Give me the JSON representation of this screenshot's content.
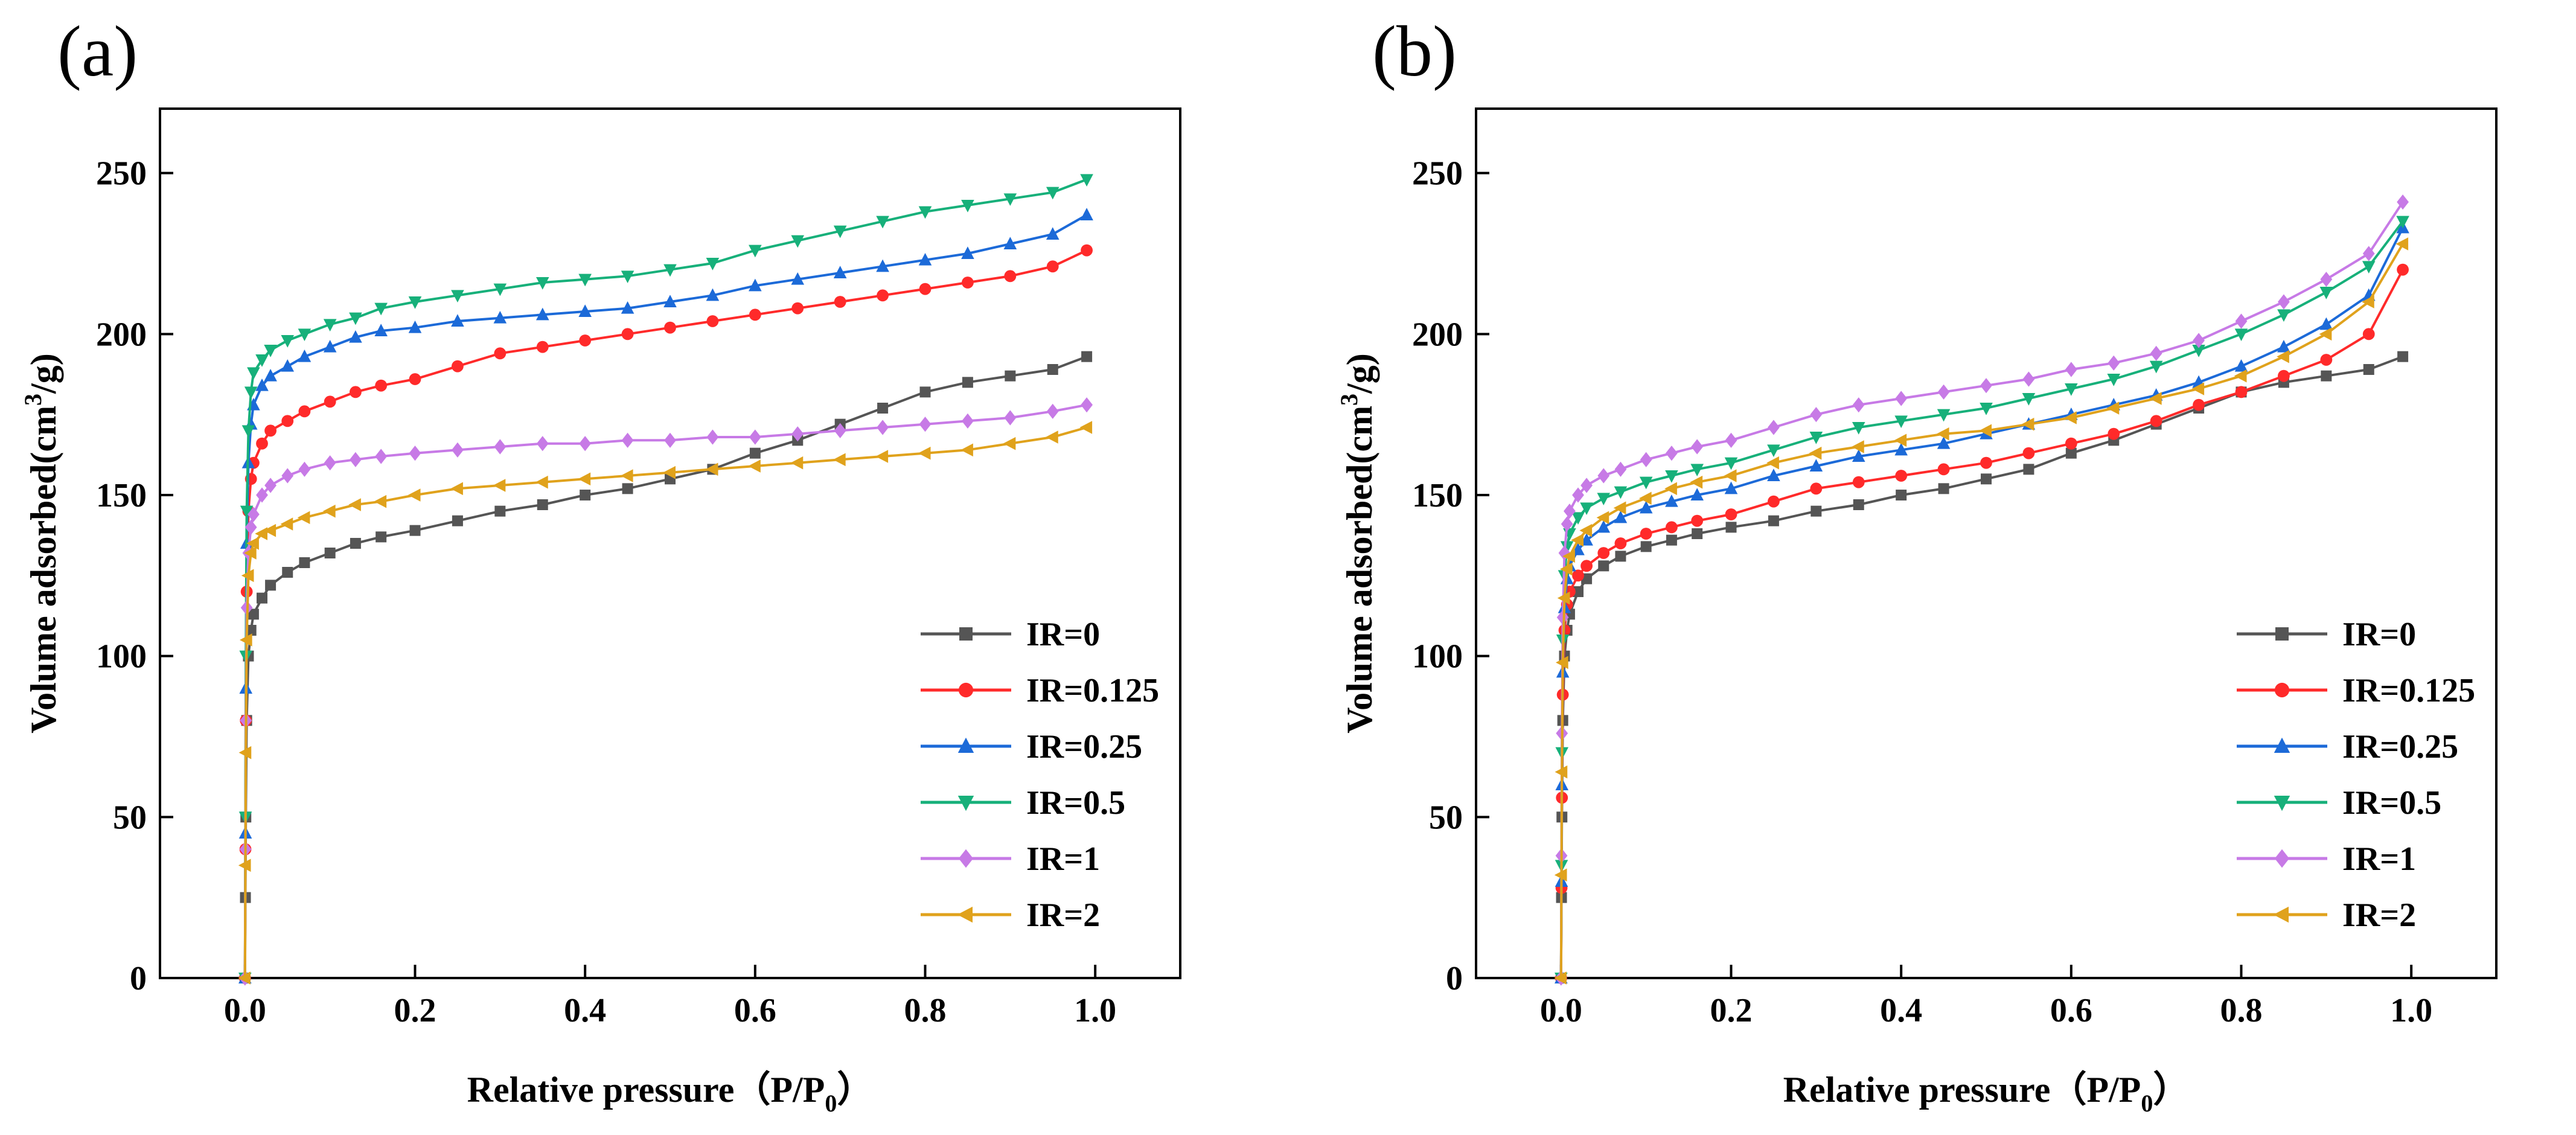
{
  "figure": {
    "panels": [
      "(a)",
      "(b)"
    ]
  },
  "chart_data": [
    {
      "type": "line",
      "panel_label": "(a)",
      "xlabel": "Relative pressure（P/P",
      "xlabel_sub": "0",
      "xlabel_end": "）",
      "ylabel": "Volume adsorbed(cm",
      "ylabel_sup": "3",
      "ylabel_end": "/g)",
      "xlim": [
        -0.1,
        1.1
      ],
      "ylim": [
        0,
        270
      ],
      "xticks": [
        0.0,
        0.2,
        0.4,
        0.6,
        0.8,
        1.0
      ],
      "xtick_labels": [
        "0.0",
        "0.2",
        "0.4",
        "0.6",
        "0.8",
        "1.0"
      ],
      "yticks": [
        0,
        50,
        100,
        150,
        200,
        250
      ],
      "ytick_labels": [
        "0",
        "50",
        "100",
        "150",
        "200",
        "250"
      ],
      "legend_position": "bottom-right",
      "series": [
        {
          "name": "IR=0",
          "color": "#555555",
          "marker": "square",
          "x": [
            0,
            0.0005,
            0.001,
            0.002,
            0.004,
            0.007,
            0.01,
            0.02,
            0.03,
            0.05,
            0.07,
            0.1,
            0.13,
            0.16,
            0.2,
            0.25,
            0.3,
            0.35,
            0.4,
            0.45,
            0.5,
            0.55,
            0.6,
            0.65,
            0.7,
            0.75,
            0.8,
            0.85,
            0.9,
            0.95,
            0.99
          ],
          "y": [
            0,
            25,
            50,
            80,
            100,
            108,
            113,
            118,
            122,
            126,
            129,
            132,
            135,
            137,
            139,
            142,
            145,
            147,
            150,
            152,
            155,
            158,
            163,
            167,
            172,
            177,
            182,
            185,
            187,
            189,
            193
          ]
        },
        {
          "name": "IR=0.125",
          "color": "#ff2a2a",
          "marker": "circle",
          "x": [
            0,
            0.0005,
            0.001,
            0.002,
            0.004,
            0.007,
            0.01,
            0.02,
            0.03,
            0.05,
            0.07,
            0.1,
            0.13,
            0.16,
            0.2,
            0.25,
            0.3,
            0.35,
            0.4,
            0.45,
            0.5,
            0.55,
            0.6,
            0.65,
            0.7,
            0.75,
            0.8,
            0.85,
            0.9,
            0.95,
            0.99
          ],
          "y": [
            0,
            40,
            80,
            120,
            145,
            155,
            160,
            166,
            170,
            173,
            176,
            179,
            182,
            184,
            186,
            190,
            194,
            196,
            198,
            200,
            202,
            204,
            206,
            208,
            210,
            212,
            214,
            216,
            218,
            221,
            226
          ]
        },
        {
          "name": "IR=0.25",
          "color": "#1c6ad8",
          "marker": "triangle-up",
          "x": [
            0,
            0.0005,
            0.001,
            0.002,
            0.004,
            0.007,
            0.01,
            0.02,
            0.03,
            0.05,
            0.07,
            0.1,
            0.13,
            0.16,
            0.2,
            0.25,
            0.3,
            0.35,
            0.4,
            0.45,
            0.5,
            0.55,
            0.6,
            0.65,
            0.7,
            0.75,
            0.8,
            0.85,
            0.9,
            0.95,
            0.99
          ],
          "y": [
            0,
            45,
            90,
            135,
            160,
            172,
            178,
            184,
            187,
            190,
            193,
            196,
            199,
            201,
            202,
            204,
            205,
            206,
            207,
            208,
            210,
            212,
            215,
            217,
            219,
            221,
            223,
            225,
            228,
            231,
            237
          ]
        },
        {
          "name": "IR=0.5",
          "color": "#17b07a",
          "marker": "triangle-down",
          "x": [
            0,
            0.0005,
            0.001,
            0.002,
            0.004,
            0.007,
            0.01,
            0.02,
            0.03,
            0.05,
            0.07,
            0.1,
            0.13,
            0.16,
            0.2,
            0.25,
            0.3,
            0.35,
            0.4,
            0.45,
            0.5,
            0.55,
            0.6,
            0.65,
            0.7,
            0.75,
            0.8,
            0.85,
            0.9,
            0.95,
            0.99
          ],
          "y": [
            0,
            50,
            100,
            145,
            170,
            182,
            188,
            192,
            195,
            198,
            200,
            203,
            205,
            208,
            210,
            212,
            214,
            216,
            217,
            218,
            220,
            222,
            226,
            229,
            232,
            235,
            238,
            240,
            242,
            244,
            248
          ]
        },
        {
          "name": "IR=1",
          "color": "#c77ae6",
          "marker": "diamond",
          "x": [
            0,
            0.0005,
            0.001,
            0.002,
            0.004,
            0.007,
            0.01,
            0.02,
            0.03,
            0.05,
            0.07,
            0.1,
            0.13,
            0.16,
            0.2,
            0.25,
            0.3,
            0.35,
            0.4,
            0.45,
            0.5,
            0.55,
            0.6,
            0.65,
            0.7,
            0.75,
            0.8,
            0.85,
            0.9,
            0.95,
            0.99
          ],
          "y": [
            0,
            40,
            80,
            115,
            132,
            140,
            144,
            150,
            153,
            156,
            158,
            160,
            161,
            162,
            163,
            164,
            165,
            166,
            166,
            167,
            167,
            168,
            168,
            169,
            170,
            171,
            172,
            173,
            174,
            176,
            178
          ]
        },
        {
          "name": "IR=2",
          "color": "#e0a21c",
          "marker": "triangle-left",
          "x": [
            0,
            0.0005,
            0.001,
            0.002,
            0.004,
            0.007,
            0.01,
            0.02,
            0.03,
            0.05,
            0.07,
            0.1,
            0.13,
            0.16,
            0.2,
            0.25,
            0.3,
            0.35,
            0.4,
            0.45,
            0.5,
            0.55,
            0.6,
            0.65,
            0.7,
            0.75,
            0.8,
            0.85,
            0.9,
            0.95,
            0.99
          ],
          "y": [
            0,
            35,
            70,
            105,
            125,
            132,
            135,
            138,
            139,
            141,
            143,
            145,
            147,
            148,
            150,
            152,
            153,
            154,
            155,
            156,
            157,
            158,
            159,
            160,
            161,
            162,
            163,
            164,
            166,
            168,
            171
          ]
        }
      ]
    },
    {
      "type": "line",
      "panel_label": "(b)",
      "xlabel": "Relative pressure（P/P",
      "xlabel_sub": "0",
      "xlabel_end": "）",
      "ylabel": "Volume adsorbed(cm",
      "ylabel_sup": "3",
      "ylabel_end": "/g)",
      "xlim": [
        -0.1,
        1.1
      ],
      "ylim": [
        0,
        270
      ],
      "xticks": [
        0.0,
        0.2,
        0.4,
        0.6,
        0.8,
        1.0
      ],
      "xtick_labels": [
        "0.0",
        "0.2",
        "0.4",
        "0.6",
        "0.8",
        "1.0"
      ],
      "yticks": [
        0,
        50,
        100,
        150,
        200,
        250
      ],
      "ytick_labels": [
        "0",
        "50",
        "100",
        "150",
        "200",
        "250"
      ],
      "legend_position": "bottom-right",
      "series": [
        {
          "name": "IR=0",
          "color": "#555555",
          "marker": "square",
          "x": [
            0,
            0.0005,
            0.001,
            0.002,
            0.004,
            0.007,
            0.01,
            0.02,
            0.03,
            0.05,
            0.07,
            0.1,
            0.13,
            0.16,
            0.2,
            0.25,
            0.3,
            0.35,
            0.4,
            0.45,
            0.5,
            0.55,
            0.6,
            0.65,
            0.7,
            0.75,
            0.8,
            0.85,
            0.9,
            0.95,
            0.99
          ],
          "y": [
            0,
            25,
            50,
            80,
            100,
            108,
            113,
            120,
            124,
            128,
            131,
            134,
            136,
            138,
            140,
            142,
            145,
            147,
            150,
            152,
            155,
            158,
            163,
            167,
            172,
            177,
            182,
            185,
            187,
            189,
            193
          ]
        },
        {
          "name": "IR=0.125",
          "color": "#ff2a2a",
          "marker": "circle",
          "x": [
            0,
            0.0005,
            0.001,
            0.002,
            0.004,
            0.007,
            0.01,
            0.02,
            0.03,
            0.05,
            0.07,
            0.1,
            0.13,
            0.16,
            0.2,
            0.25,
            0.3,
            0.35,
            0.4,
            0.45,
            0.5,
            0.55,
            0.6,
            0.65,
            0.7,
            0.75,
            0.8,
            0.85,
            0.9,
            0.95,
            0.99
          ],
          "y": [
            0,
            28,
            56,
            88,
            108,
            116,
            120,
            125,
            128,
            132,
            135,
            138,
            140,
            142,
            144,
            148,
            152,
            154,
            156,
            158,
            160,
            163,
            166,
            169,
            173,
            178,
            182,
            187,
            192,
            200,
            220
          ]
        },
        {
          "name": "IR=0.25",
          "color": "#1c6ad8",
          "marker": "triangle-up",
          "x": [
            0,
            0.0005,
            0.001,
            0.002,
            0.004,
            0.007,
            0.01,
            0.02,
            0.03,
            0.05,
            0.07,
            0.1,
            0.13,
            0.16,
            0.2,
            0.25,
            0.3,
            0.35,
            0.4,
            0.45,
            0.5,
            0.55,
            0.6,
            0.65,
            0.7,
            0.75,
            0.8,
            0.85,
            0.9,
            0.95,
            0.99
          ],
          "y": [
            0,
            30,
            60,
            95,
            115,
            124,
            128,
            133,
            136,
            140,
            143,
            146,
            148,
            150,
            152,
            156,
            159,
            162,
            164,
            166,
            169,
            172,
            175,
            178,
            181,
            185,
            190,
            196,
            203,
            212,
            233
          ]
        },
        {
          "name": "IR=0.5",
          "color": "#17b07a",
          "marker": "triangle-down",
          "x": [
            0,
            0.0005,
            0.001,
            0.002,
            0.004,
            0.007,
            0.01,
            0.02,
            0.03,
            0.05,
            0.07,
            0.1,
            0.13,
            0.16,
            0.2,
            0.25,
            0.3,
            0.35,
            0.4,
            0.45,
            0.5,
            0.55,
            0.6,
            0.65,
            0.7,
            0.75,
            0.8,
            0.85,
            0.9,
            0.95,
            0.99
          ],
          "y": [
            0,
            35,
            70,
            105,
            125,
            134,
            138,
            143,
            146,
            149,
            151,
            154,
            156,
            158,
            160,
            164,
            168,
            171,
            173,
            175,
            177,
            180,
            183,
            186,
            190,
            195,
            200,
            206,
            213,
            221,
            235
          ]
        },
        {
          "name": "IR=1",
          "color": "#c77ae6",
          "marker": "diamond",
          "x": [
            0,
            0.0005,
            0.001,
            0.002,
            0.004,
            0.007,
            0.01,
            0.02,
            0.03,
            0.05,
            0.07,
            0.1,
            0.13,
            0.16,
            0.2,
            0.25,
            0.3,
            0.35,
            0.4,
            0.45,
            0.5,
            0.55,
            0.6,
            0.65,
            0.7,
            0.75,
            0.8,
            0.85,
            0.9,
            0.95,
            0.99
          ],
          "y": [
            0,
            38,
            76,
            112,
            132,
            141,
            145,
            150,
            153,
            156,
            158,
            161,
            163,
            165,
            167,
            171,
            175,
            178,
            180,
            182,
            184,
            186,
            189,
            191,
            194,
            198,
            204,
            210,
            217,
            225,
            241
          ]
        },
        {
          "name": "IR=2",
          "color": "#e0a21c",
          "marker": "triangle-left",
          "x": [
            0,
            0.0005,
            0.001,
            0.002,
            0.004,
            0.007,
            0.01,
            0.02,
            0.03,
            0.05,
            0.07,
            0.1,
            0.13,
            0.16,
            0.2,
            0.25,
            0.3,
            0.35,
            0.4,
            0.45,
            0.5,
            0.55,
            0.6,
            0.65,
            0.7,
            0.75,
            0.8,
            0.85,
            0.9,
            0.95,
            0.99
          ],
          "y": [
            0,
            32,
            64,
            98,
            118,
            127,
            131,
            136,
            139,
            143,
            146,
            149,
            152,
            154,
            156,
            160,
            163,
            165,
            167,
            169,
            170,
            172,
            174,
            177,
            180,
            183,
            187,
            193,
            200,
            210,
            228
          ]
        }
      ]
    }
  ]
}
